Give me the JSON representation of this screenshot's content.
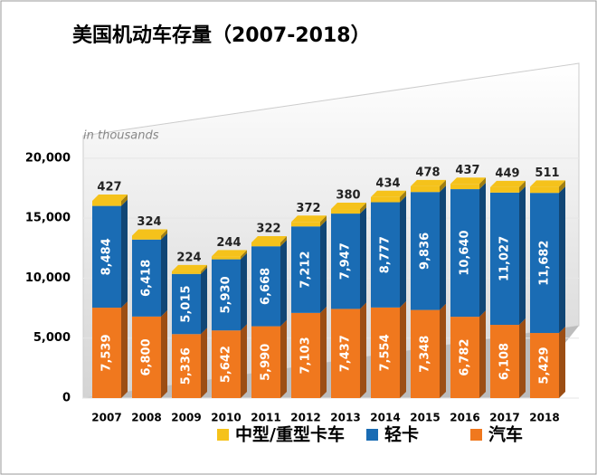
{
  "chart_data": {
    "type": "bar",
    "stacked": true,
    "title": "美国机动车存量（2007-2018）",
    "annotation": "in thousands",
    "categories": [
      "2007",
      "2008",
      "2009",
      "2010",
      "2011",
      "2012",
      "2013",
      "2014",
      "2015",
      "2016",
      "2017",
      "2018"
    ],
    "series": [
      {
        "name": "汽车",
        "color": "#f0781e",
        "values": [
          7539,
          6800,
          5336,
          5642,
          5990,
          7103,
          7437,
          7554,
          7348,
          6782,
          6108,
          5429
        ],
        "value_labels": [
          "7,539",
          "6,800",
          "5,336",
          "5,642",
          "5,990",
          "7,103",
          "7,437",
          "7,554",
          "7,348",
          "6,782",
          "6,108",
          "5,429"
        ]
      },
      {
        "name": "轻卡",
        "color": "#1a6cb4",
        "values": [
          8484,
          6418,
          5015,
          5930,
          6668,
          7212,
          7947,
          8777,
          9836,
          10640,
          11027,
          11682
        ],
        "value_labels": [
          "8,484",
          "6,418",
          "5,015",
          "5,930",
          "6,668",
          "7,212",
          "7,947",
          "8,777",
          "9,836",
          "10,640",
          "11,027",
          "11,682"
        ]
      },
      {
        "name": "中型/重型卡车",
        "color": "#f5c21b",
        "values": [
          427,
          324,
          224,
          244,
          322,
          372,
          380,
          434,
          478,
          437,
          449,
          511
        ]
      }
    ],
    "ylim": [
      0,
      21500
    ],
    "yticks": [
      0,
      {
        "value": 5000,
        "label": "5,000"
      },
      {
        "value": 10000,
        "label": "10,000"
      },
      {
        "value": 15000,
        "label": "15,000"
      },
      {
        "value": 20000,
        "label": "20,000"
      }
    ],
    "grid": true
  }
}
